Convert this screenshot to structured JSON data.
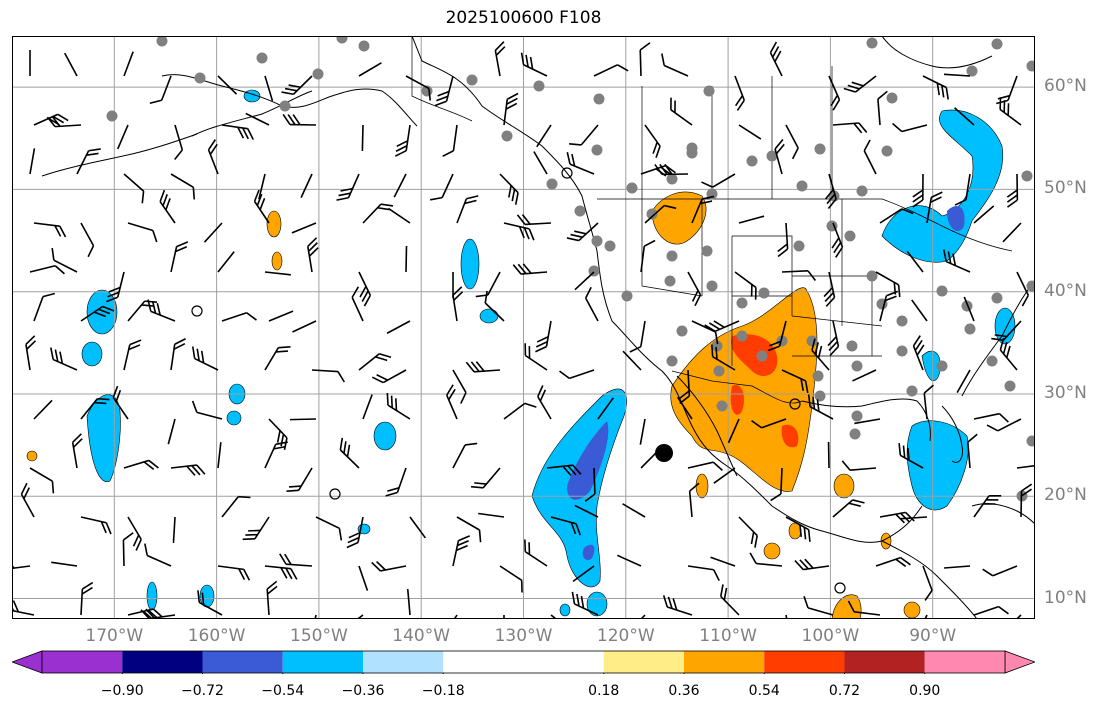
{
  "title": "2025100600 F108",
  "map": {
    "lat_labels": [
      {
        "text": "60°N",
        "value": 60
      },
      {
        "text": "50°N",
        "value": 50
      },
      {
        "text": "40°N",
        "value": 40
      },
      {
        "text": "30°N",
        "value": 30
      },
      {
        "text": "20°N",
        "value": 20
      },
      {
        "text": "10°N",
        "value": 10
      }
    ],
    "lon_labels": [
      {
        "text": "170°W",
        "value": -170
      },
      {
        "text": "160°W",
        "value": -160
      },
      {
        "text": "150°W",
        "value": -150
      },
      {
        "text": "140°W",
        "value": -140
      },
      {
        "text": "130°W",
        "value": -130
      },
      {
        "text": "120°W",
        "value": -120
      },
      {
        "text": "110°W",
        "value": -110
      },
      {
        "text": "100°W",
        "value": -100
      },
      {
        "text": "90°W",
        "value": -90
      }
    ],
    "lon_range": [
      -180,
      -80
    ],
    "lat_range": [
      8,
      65
    ],
    "grid": true
  },
  "colorbar": {
    "ticks": [
      "−0.90",
      "−0.72",
      "−0.54",
      "−0.36",
      "−0.18",
      "0.18",
      "0.36",
      "0.54",
      "0.72",
      "0.90"
    ],
    "colors": [
      "#9b30d0",
      "#000080",
      "#3b5bd6",
      "#00bfff",
      "#b0e2ff",
      "#ffffff",
      "#ffee88",
      "#ffa500",
      "#ff3d00",
      "#b22222",
      "#ff88b0"
    ]
  }
}
